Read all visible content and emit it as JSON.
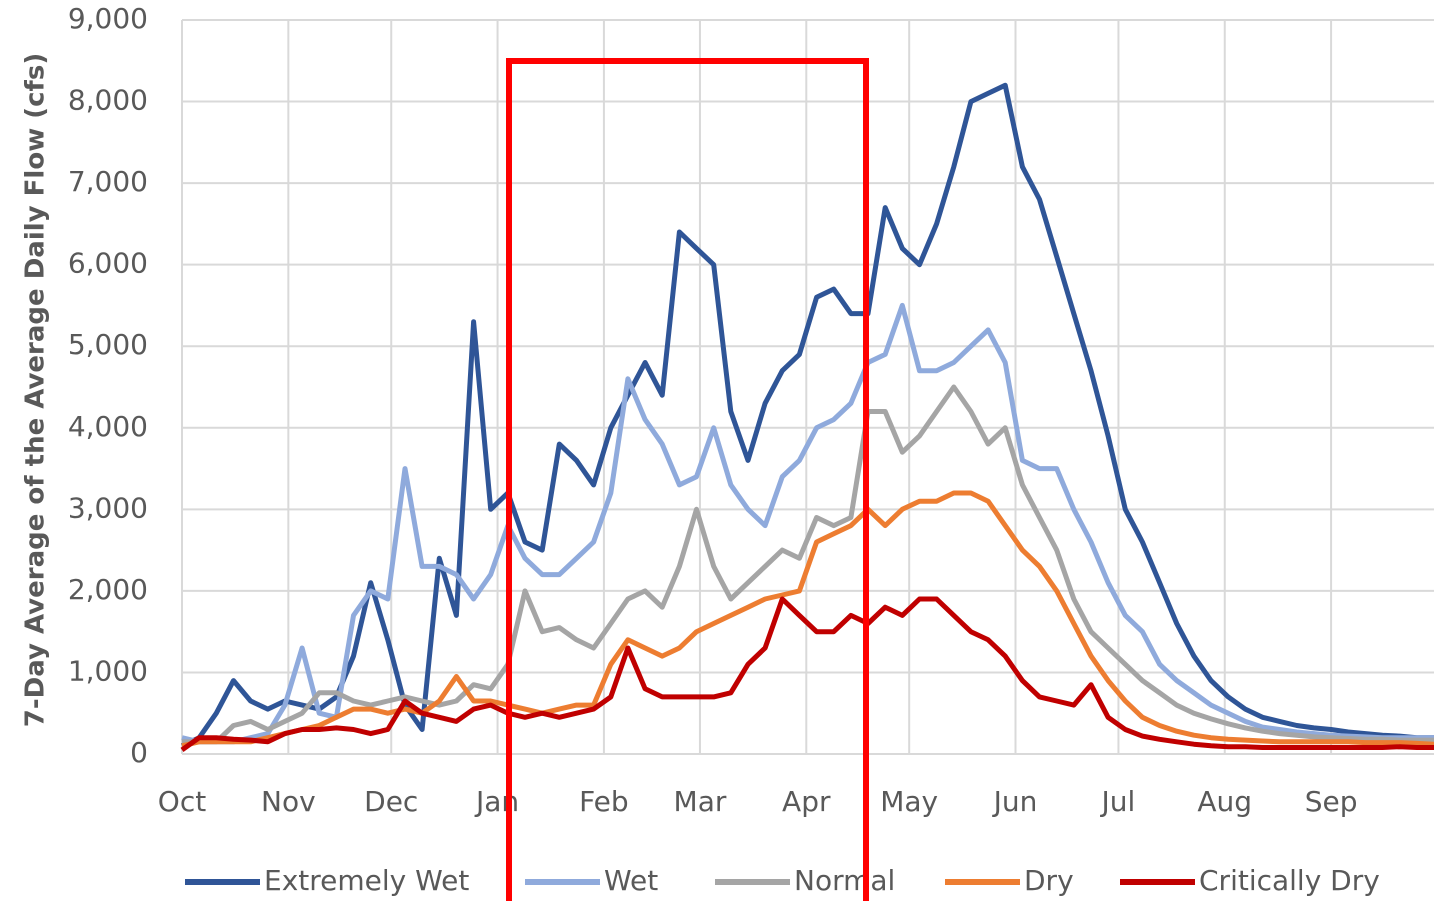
{
  "chart_data": {
    "type": "line",
    "y_label": "7-Day Average of the Average Daily Flow (cfs)",
    "x": [
      0,
      5,
      10,
      15,
      20,
      25,
      30,
      35,
      40,
      45,
      50,
      55,
      60,
      65,
      70,
      75,
      80,
      85,
      90,
      95,
      100,
      105,
      110,
      115,
      120,
      125,
      130,
      135,
      140,
      145,
      150,
      155,
      160,
      165,
      170,
      175,
      180,
      185,
      190,
      195,
      200,
      205,
      210,
      215,
      220,
      225,
      230,
      235,
      240,
      245,
      250,
      255,
      260,
      265,
      270,
      275,
      280,
      285,
      290,
      295,
      300,
      305,
      310,
      315,
      320,
      325,
      330,
      335,
      340,
      345,
      350,
      355,
      360,
      365
    ],
    "xlim": [
      0,
      365
    ],
    "xticks": [
      {
        "value": 0,
        "label": "Oct"
      },
      {
        "value": 31,
        "label": "Nov"
      },
      {
        "value": 61,
        "label": "Dec"
      },
      {
        "value": 92,
        "label": "Jan"
      },
      {
        "value": 123,
        "label": "Feb"
      },
      {
        "value": 151,
        "label": "Mar"
      },
      {
        "value": 182,
        "label": "Apr"
      },
      {
        "value": 212,
        "label": "May"
      },
      {
        "value": 243,
        "label": "Jun"
      },
      {
        "value": 273,
        "label": "Jul"
      },
      {
        "value": 304,
        "label": "Aug"
      },
      {
        "value": 335,
        "label": "Sep"
      }
    ],
    "ylim": [
      0,
      9000
    ],
    "yticks": [
      0,
      {
        "value": 1000,
        "label": "1,000"
      },
      {
        "value": 2000,
        "label": "2,000"
      },
      {
        "value": 3000,
        "label": "3,000"
      },
      {
        "value": 4000,
        "label": "4,000"
      },
      {
        "value": 5000,
        "label": "5,000"
      },
      {
        "value": 6000,
        "label": "6,000"
      },
      {
        "value": 7000,
        "label": "7,000"
      },
      {
        "value": 8000,
        "label": "8,000"
      },
      {
        "value": 9000,
        "label": "9,000"
      }
    ],
    "grid": true,
    "legend": "bottom",
    "series": [
      {
        "name": "Extremely Wet",
        "color": "#2f5597",
        "values": [
          100,
          200,
          500,
          900,
          650,
          550,
          650,
          600,
          550,
          700,
          1200,
          2100,
          1400,
          600,
          300,
          2400,
          1700,
          5300,
          3000,
          3200,
          2600,
          2500,
          3800,
          3600,
          3300,
          4000,
          4400,
          4800,
          4400,
          6400,
          6200,
          6000,
          4200,
          3600,
          4300,
          4700,
          4900,
          5600,
          5700,
          5400,
          5400,
          6700,
          6200,
          6000,
          6500,
          7200,
          8000,
          8100,
          8200,
          7200,
          6800,
          6100,
          5400,
          4700,
          3900,
          3000,
          2600,
          2100,
          1600,
          1200,
          900,
          700,
          550,
          450,
          400,
          350,
          320,
          300,
          270,
          250,
          230,
          220,
          200,
          200
        ]
      },
      {
        "name": "Wet",
        "color": "#8faadc",
        "values": [
          200,
          150,
          150,
          150,
          200,
          250,
          600,
          1300,
          500,
          450,
          1700,
          2000,
          1900,
          3500,
          2300,
          2300,
          2200,
          1900,
          2200,
          2800,
          2400,
          2200,
          2200,
          2400,
          2600,
          3200,
          4600,
          4100,
          3800,
          3300,
          3400,
          4000,
          3300,
          3000,
          2800,
          3400,
          3600,
          4000,
          4100,
          4300,
          4800,
          4900,
          5500,
          4700,
          4700,
          4800,
          5000,
          5200,
          4800,
          3600,
          3500,
          3500,
          3000,
          2600,
          2100,
          1700,
          1500,
          1100,
          900,
          750,
          600,
          500,
          400,
          330,
          300,
          270,
          250,
          230,
          220,
          210,
          200,
          200,
          200,
          200
        ]
      },
      {
        "name": "Normal",
        "color": "#a5a5a5",
        "values": [
          150,
          150,
          150,
          350,
          400,
          300,
          400,
          500,
          750,
          750,
          650,
          600,
          650,
          700,
          650,
          600,
          650,
          850,
          800,
          1100,
          2000,
          1500,
          1550,
          1400,
          1300,
          1600,
          1900,
          2000,
          1800,
          2300,
          3000,
          2300,
          1900,
          2100,
          2300,
          2500,
          2400,
          2900,
          2800,
          2900,
          4200,
          4200,
          3700,
          3900,
          4200,
          4500,
          4200,
          3800,
          4000,
          3300,
          2900,
          2500,
          1900,
          1500,
          1300,
          1100,
          900,
          750,
          600,
          500,
          430,
          370,
          320,
          280,
          250,
          230,
          210,
          200,
          190,
          180,
          180,
          170,
          170,
          170
        ]
      },
      {
        "name": "Dry",
        "color": "#ed7d31",
        "values": [
          100,
          150,
          150,
          150,
          150,
          200,
          250,
          300,
          350,
          450,
          550,
          550,
          500,
          550,
          500,
          650,
          950,
          650,
          650,
          600,
          550,
          500,
          550,
          600,
          600,
          1100,
          1400,
          1300,
          1200,
          1300,
          1500,
          1600,
          1700,
          1800,
          1900,
          1950,
          2000,
          2600,
          2700,
          2800,
          3000,
          2800,
          3000,
          3100,
          3100,
          3200,
          3200,
          3100,
          2800,
          2500,
          2300,
          2000,
          1600,
          1200,
          900,
          650,
          450,
          350,
          280,
          230,
          200,
          180,
          170,
          160,
          150,
          150,
          150,
          150,
          150,
          140,
          140,
          140,
          130,
          120
        ]
      },
      {
        "name": "Critically Dry",
        "color": "#c00000",
        "values": [
          50,
          200,
          200,
          180,
          170,
          150,
          250,
          300,
          300,
          320,
          300,
          250,
          300,
          650,
          500,
          450,
          400,
          550,
          600,
          500,
          450,
          500,
          450,
          500,
          550,
          700,
          1300,
          800,
          700,
          700,
          700,
          700,
          750,
          1100,
          1300,
          1900,
          1700,
          1500,
          1500,
          1700,
          1600,
          1800,
          1700,
          1900,
          1900,
          1700,
          1500,
          1400,
          1200,
          900,
          700,
          650,
          600,
          850,
          450,
          300,
          220,
          180,
          150,
          120,
          100,
          90,
          90,
          80,
          80,
          80,
          80,
          80,
          80,
          80,
          80,
          90,
          80,
          80
        ]
      }
    ]
  }
}
